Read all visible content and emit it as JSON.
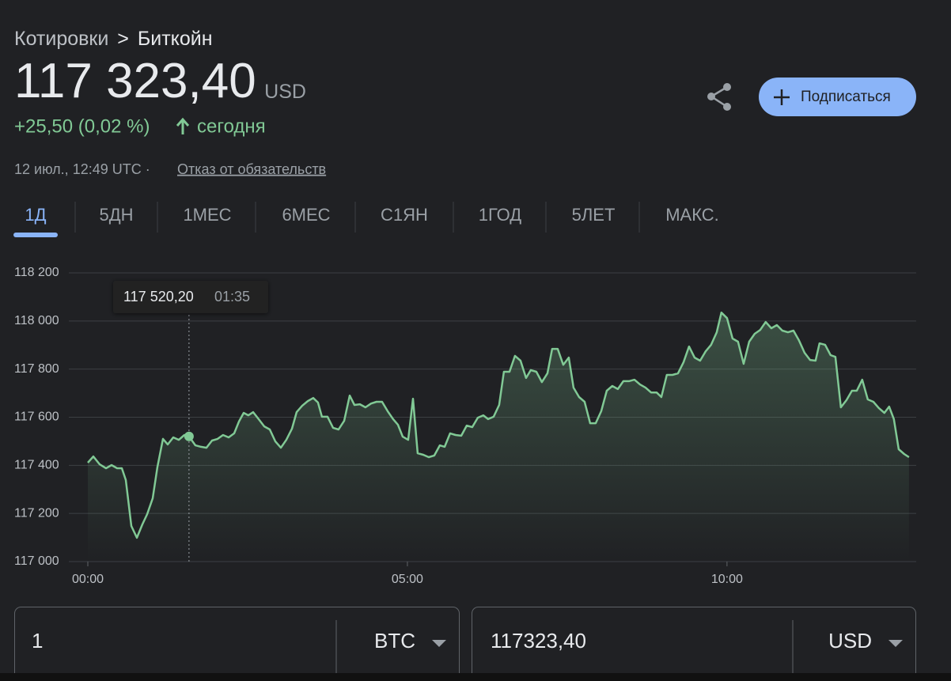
{
  "breadcrumb": {
    "parent": "Котировки",
    "separator": ">",
    "current": "Биткойн"
  },
  "quote": {
    "price": "117 323,40",
    "currency": "USD",
    "change": "+25,50 (0,02 %)",
    "period": "сегодня",
    "timestamp": "12 июл., 12:49 UTC ·",
    "disclaimer": "Отказ от обязательств"
  },
  "subscribe_button": "Подписаться",
  "tabs": {
    "items": [
      "1Д",
      "5ДН",
      "1МЕС",
      "6МЕС",
      "С1ЯН",
      "1ГОД",
      "5ЛЕТ",
      "МАКС."
    ],
    "active": 0
  },
  "converter": {
    "from_amount": "1",
    "from_currency": "BTC",
    "to_amount": "117323,40",
    "to_currency": "USD"
  },
  "chart_data": {
    "type": "line",
    "color": "#81c995",
    "grid": true,
    "x": [
      0,
      0.087,
      0.186,
      0.285,
      0.371,
      0.458,
      0.532,
      0.594,
      0.681,
      0.767,
      0.854,
      0.928,
      1.015,
      1.089,
      1.176,
      1.25,
      1.337,
      1.423,
      1.51,
      1.583,
      1.683,
      1.77,
      1.856,
      1.943,
      2.03,
      2.116,
      2.203,
      2.29,
      2.364,
      2.438,
      2.512,
      2.587,
      2.673,
      2.76,
      2.847,
      2.933,
      3.02,
      3.106,
      3.193,
      3.267,
      3.354,
      3.441,
      3.527,
      3.601,
      3.663,
      3.75,
      3.837,
      3.923,
      4.01,
      4.097,
      4.171,
      4.257,
      4.344,
      4.431,
      4.517,
      4.604,
      4.691,
      4.777,
      4.851,
      4.926,
      5.012,
      5.087,
      5.161,
      5.248,
      5.334,
      5.421,
      5.507,
      5.582,
      5.668,
      5.755,
      5.842,
      5.928,
      6.015,
      6.101,
      6.188,
      6.262,
      6.349,
      6.436,
      6.51,
      6.597,
      6.683,
      6.77,
      6.856,
      6.931,
      7.017,
      7.104,
      7.191,
      7.265,
      7.351,
      7.438,
      7.525,
      7.599,
      7.686,
      7.772,
      7.859,
      7.946,
      8.032,
      8.119,
      8.205,
      8.292,
      8.379,
      8.465,
      8.552,
      8.639,
      8.725,
      8.812,
      8.899,
      8.973,
      9.059,
      9.146,
      9.233,
      9.319,
      9.406,
      9.493,
      9.579,
      9.666,
      9.752,
      9.839,
      9.913,
      10,
      10.087,
      10.173,
      10.26,
      10.347,
      10.433,
      10.52,
      10.606,
      10.693,
      10.78,
      10.866,
      10.953,
      11.04,
      11.126,
      11.213,
      11.3,
      11.386,
      11.448,
      11.535,
      11.621,
      11.696,
      11.782,
      11.869,
      11.955,
      12.03,
      12.116,
      12.203,
      12.29,
      12.376,
      12.463,
      12.537,
      12.611,
      12.686,
      12.772,
      12.847
    ],
    "values": [
      117411,
      117437,
      117404,
      117388,
      117401,
      117388,
      117388,
      117339,
      117148,
      117099,
      117155,
      117197,
      117263,
      117394,
      117510,
      117487,
      117516,
      117506,
      117526,
      117520.2,
      117483,
      117477,
      117473,
      117503,
      117510,
      117526,
      117516,
      117533,
      117582,
      117618,
      117608,
      117621,
      117592,
      117562,
      117549,
      117500,
      117473,
      117506,
      117552,
      117621,
      117648,
      117667,
      117680,
      117661,
      117602,
      117602,
      117556,
      117549,
      117585,
      117690,
      117651,
      117654,
      117641,
      117657,
      117664,
      117664,
      117625,
      117592,
      117569,
      117519,
      117506,
      117677,
      117450,
      117444,
      117434,
      117441,
      117483,
      117477,
      117533,
      117526,
      117523,
      117565,
      117559,
      117598,
      117608,
      117592,
      117602,
      117651,
      117789,
      117789,
      117855,
      117835,
      117763,
      117796,
      117789,
      117746,
      117782,
      117884,
      117884,
      117818,
      117848,
      117723,
      117684,
      117664,
      117575,
      117575,
      117625,
      117710,
      117730,
      117717,
      117750,
      117750,
      117756,
      117736,
      117723,
      117703,
      117703,
      117684,
      117776,
      117776,
      117782,
      117828,
      117894,
      117848,
      117835,
      117874,
      117901,
      117953,
      118035,
      118012,
      117927,
      117914,
      117822,
      117914,
      117947,
      117963,
      117996,
      117970,
      117983,
      117960,
      117953,
      117960,
      117920,
      117868,
      117838,
      117835,
      117907,
      117901,
      117858,
      117851,
      117641,
      117671,
      117710,
      117710,
      117756,
      117674,
      117664,
      117638,
      117618,
      117644,
      117592,
      117467,
      117447,
      117434
    ],
    "xlim": [
      0,
      12.96
    ],
    "xticks": [
      {
        "value": 0,
        "label": "00:00"
      },
      {
        "value": 5,
        "label": "05:00"
      },
      {
        "value": 10,
        "label": "10:00"
      }
    ],
    "ylim": [
      117000,
      118200
    ],
    "yticks": [
      {
        "value": 117000,
        "label": "117 000"
      },
      {
        "value": 117200,
        "label": "117 200"
      },
      {
        "value": 117400,
        "label": "117 400"
      },
      {
        "value": 117600,
        "label": "117 600"
      },
      {
        "value": 117800,
        "label": "117 800"
      },
      {
        "value": 118000,
        "label": "118 000"
      },
      {
        "value": 118200,
        "label": "118 200"
      }
    ],
    "tooltip": {
      "x": {
        "value": 1.583,
        "label": "01:35"
      },
      "value": 117520.2,
      "label": "117 520,20"
    }
  }
}
